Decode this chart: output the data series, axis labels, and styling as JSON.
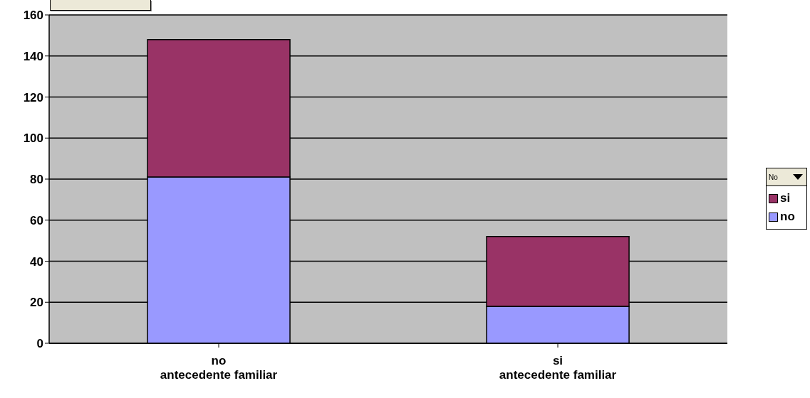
{
  "chart_data": {
    "type": "bar",
    "stacked": true,
    "categories": [
      "no\nantecedente familiar",
      "si\nantecedente familiar"
    ],
    "series": [
      {
        "name": "no",
        "color": "#9999ff",
        "values": [
          81,
          18
        ]
      },
      {
        "name": "si",
        "color": "#993366",
        "values": [
          67,
          34
        ]
      }
    ],
    "ylim": [
      0,
      160
    ],
    "yticks": [
      0,
      20,
      40,
      60,
      80,
      100,
      120,
      140,
      160
    ],
    "grid": "y",
    "legend": "right",
    "legend_title": "No"
  }
}
